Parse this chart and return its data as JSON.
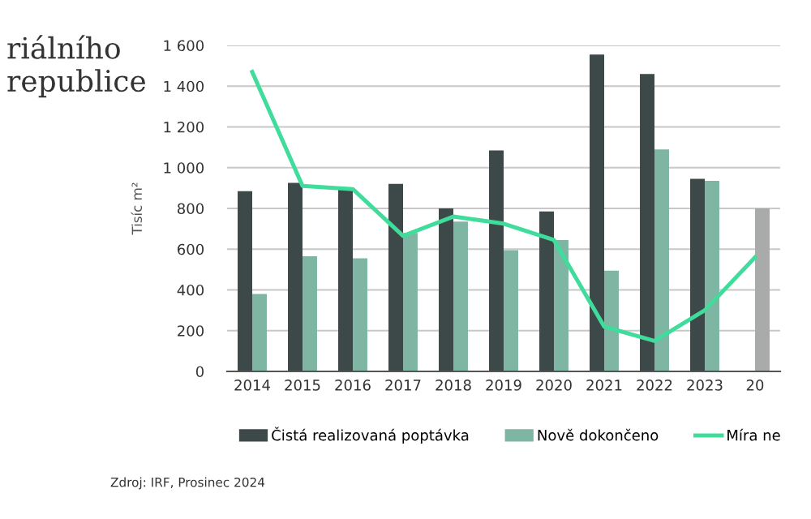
{
  "chart_data": {
    "type": "bar",
    "title": "riálního\nrepublice",
    "ylabel": "Tisíc m²",
    "categories": [
      "2014",
      "2015",
      "2016",
      "2017",
      "2018",
      "2019",
      "2020",
      "2021",
      "2022",
      "2023",
      "20"
    ],
    "series": [
      {
        "name": "Čistá realizovaná poptávka",
        "color": "#3d4948",
        "values": [
          885,
          925,
          895,
          920,
          800,
          1085,
          785,
          1555,
          1460,
          945,
          null
        ]
      },
      {
        "name": "Nově dokončeno",
        "color": "#7fb6a3",
        "colors": [
          "#7fb6a3",
          "#7fb6a3",
          "#7fb6a3",
          "#7fb6a3",
          "#7fb6a3",
          "#7fb6a3",
          "#7fb6a3",
          "#7fb6a3",
          "#7fb6a3",
          "#7fb6a3",
          "#a9abaa"
        ],
        "values": [
          380,
          565,
          555,
          680,
          735,
          595,
          645,
          495,
          1090,
          935,
          800
        ]
      },
      {
        "name": "Míra ne",
        "type": "line",
        "color": "#3fdc9c",
        "values": [
          1470,
          910,
          895,
          665,
          760,
          725,
          645,
          220,
          150,
          300,
          560
        ]
      }
    ],
    "ylim": [
      0,
      1600
    ],
    "yticks": [
      0,
      200,
      400,
      600,
      800,
      {
        "value": 1000,
        "label": "1 000"
      },
      {
        "value": 1200,
        "label": "1 200"
      },
      {
        "value": 1400,
        "label": "1 400"
      },
      {
        "value": 1600,
        "label": "1 600"
      }
    ],
    "grid": "y",
    "legend": "bottom",
    "annotations": [
      "Zdroj: IRF, Prosinec 2024"
    ]
  }
}
